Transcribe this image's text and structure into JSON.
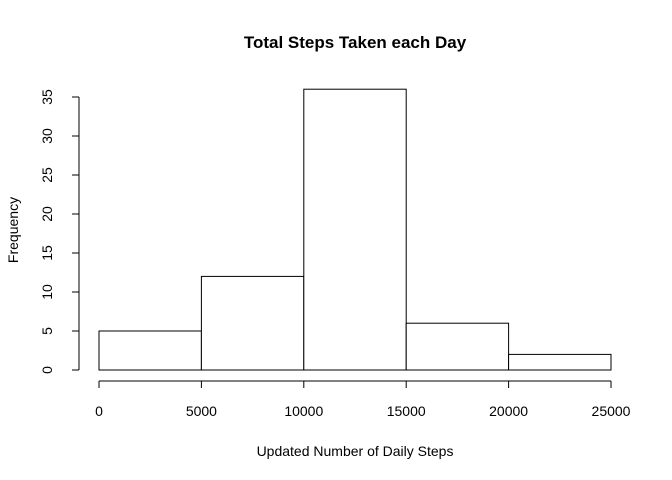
{
  "chart_data": {
    "type": "bar",
    "title": "Total Steps Taken each Day",
    "xlabel": "Updated Number of Daily Steps",
    "ylabel": "Frequency",
    "bins": [
      {
        "start": 0,
        "end": 5000,
        "count": 5
      },
      {
        "start": 5000,
        "end": 10000,
        "count": 12
      },
      {
        "start": 10000,
        "end": 15000,
        "count": 36
      },
      {
        "start": 15000,
        "end": 20000,
        "count": 6
      },
      {
        "start": 20000,
        "end": 25000,
        "count": 2
      }
    ],
    "x_ticks": [
      0,
      5000,
      10000,
      15000,
      20000,
      25000
    ],
    "y_ticks": [
      0,
      5,
      10,
      15,
      20,
      25,
      30,
      35
    ],
    "xlim": [
      0,
      25000
    ],
    "ylim": [
      0,
      36
    ],
    "grid": false,
    "legend": "none"
  }
}
